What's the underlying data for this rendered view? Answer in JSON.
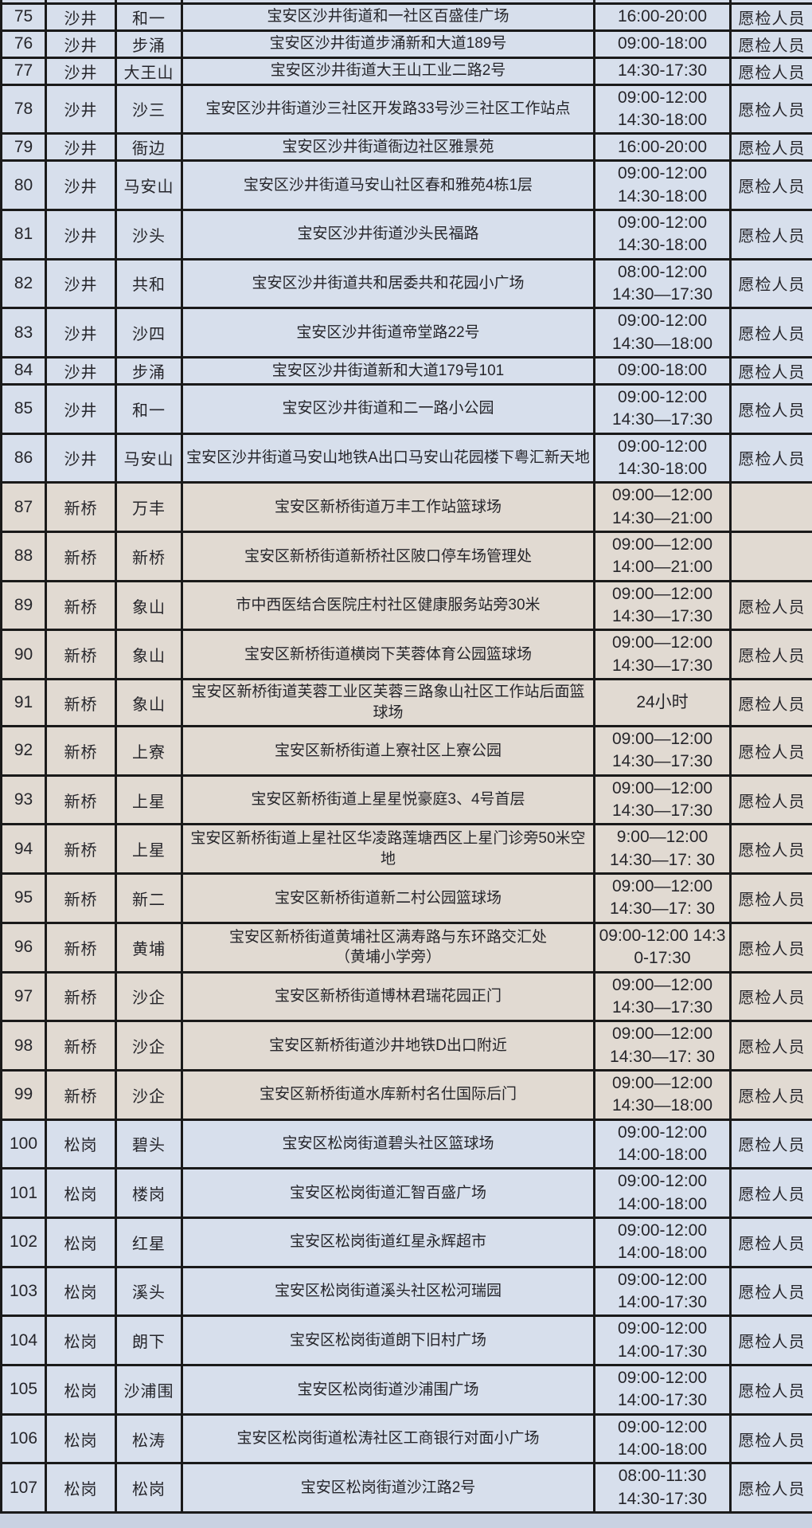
{
  "colors": {
    "section_blue": "#d7dfec",
    "section_tan": "#e1dad2",
    "border": "#1a1a1a",
    "text": "#26262b"
  },
  "table": {
    "rows": [
      {
        "no": "75",
        "street": "沙井",
        "community": "和一",
        "address": "宝安区沙井街道和一社区百盛佳广场",
        "time": "16:00-20:00",
        "note": "愿检人员",
        "section": "blue",
        "size": "s"
      },
      {
        "no": "76",
        "street": "沙井",
        "community": "步涌",
        "address": "宝安区沙井街道步涌新和大道189号",
        "time": "09:00-18:00",
        "note": "愿检人员",
        "section": "blue",
        "size": "s"
      },
      {
        "no": "77",
        "street": "沙井",
        "community": "大王山",
        "address": "宝安区沙井街道大王山工业二路2号",
        "time": "14:30-17:30",
        "note": "愿检人员",
        "section": "blue",
        "size": "s"
      },
      {
        "no": "78",
        "street": "沙井",
        "community": "沙三",
        "address": "宝安区沙井街道沙三社区开发路33号沙三社区工作站点",
        "time": "09:00-12:00\n14:30-18:00",
        "note": "愿检人员",
        "section": "blue",
        "size": "t"
      },
      {
        "no": "79",
        "street": "沙井",
        "community": "衙边",
        "address": "宝安区沙井街道衙边社区雅景苑",
        "time": "16:00-20:00",
        "note": "愿检人员",
        "section": "blue",
        "size": "s"
      },
      {
        "no": "80",
        "street": "沙井",
        "community": "马安山",
        "address": "宝安区沙井街道马安山社区春和雅苑4栋1层",
        "time": "09:00-12:00\n14:30-18:00",
        "note": "愿检人员",
        "section": "blue",
        "size": "t"
      },
      {
        "no": "81",
        "street": "沙井",
        "community": "沙头",
        "address": "宝安区沙井街道沙头民福路",
        "time": "09:00-12:00\n14:30-18:00",
        "note": "愿检人员",
        "section": "blue",
        "size": "t"
      },
      {
        "no": "82",
        "street": "沙井",
        "community": "共和",
        "address": "宝安区沙井街道共和居委共和花园小广场",
        "time": "08:00-12:00\n14:30—17:30",
        "note": "愿检人员",
        "section": "blue",
        "size": "t"
      },
      {
        "no": "83",
        "street": "沙井",
        "community": "沙四",
        "address": "宝安区沙井街道帝堂路22号",
        "time": "09:00-12:00\n14:30—18:00",
        "note": "愿检人员",
        "section": "blue",
        "size": "t"
      },
      {
        "no": "84",
        "street": "沙井",
        "community": "步涌",
        "address": "宝安区沙井街道新和大道179号101",
        "time": "09:00-18:00",
        "note": "愿检人员",
        "section": "blue",
        "size": "s"
      },
      {
        "no": "85",
        "street": "沙井",
        "community": "和一",
        "address": "宝安区沙井街道和二一路小公园",
        "time": "09:00-12:00\n14:30—17:30",
        "note": "愿检人员",
        "section": "blue",
        "size": "t"
      },
      {
        "no": "86",
        "street": "沙井",
        "community": "马安山",
        "address": "宝安区沙井街道马安山地铁A出口马安山花园楼下粤汇新天地",
        "time": "09:00-12:00\n14:30-18:00",
        "note": "愿检人员",
        "section": "blue",
        "size": "t"
      },
      {
        "no": "87",
        "street": "新桥",
        "community": "万丰",
        "address": "宝安区新桥街道万丰工作站篮球场",
        "time": "09:00—12:00\n14:30—21:00",
        "note": "",
        "section": "tan",
        "size": "t"
      },
      {
        "no": "88",
        "street": "新桥",
        "community": "新桥",
        "address": "宝安区新桥街道新桥社区陂口停车场管理处",
        "time": "09:00—12:00\n14:00—21:00",
        "note": "",
        "section": "tan",
        "size": "t"
      },
      {
        "no": "89",
        "street": "新桥",
        "community": "象山",
        "address": "市中西医结合医院庄村社区健康服务站旁30米",
        "time": "09:00—12:00\n14:30—17:30",
        "note": "愿检人员",
        "section": "tan",
        "size": "t"
      },
      {
        "no": "90",
        "street": "新桥",
        "community": "象山",
        "address": "宝安区新桥街道横岗下芙蓉体育公园篮球场",
        "time": "09:00—12:00\n14:30—17:30",
        "note": "愿检人员",
        "section": "tan",
        "size": "t"
      },
      {
        "no": "91",
        "street": "新桥",
        "community": "象山",
        "address": "宝安区新桥街道芙蓉工业区芙蓉三路象山社区工作站后面篮球场",
        "time": "24小时",
        "note": "愿检人员",
        "section": "tan",
        "size": "t"
      },
      {
        "no": "92",
        "street": "新桥",
        "community": "上寮",
        "address": "宝安区新桥街道上寮社区上寮公园",
        "time": "09:00—12:00\n14:30—17:30",
        "note": "愿检人员",
        "section": "tan",
        "size": "t"
      },
      {
        "no": "93",
        "street": "新桥",
        "community": "上星",
        "address": "宝安区新桥街道上星星悦豪庭3、4号首层",
        "time": "09:00—12:00\n14:30—17:30",
        "note": "愿检人员",
        "section": "tan",
        "size": "t"
      },
      {
        "no": "94",
        "street": "新桥",
        "community": "上星",
        "address": "宝安区新桥街道上星社区华凌路莲塘西区上星门诊旁50米空地",
        "time": "9:00—12:00\n14:30—17: 30",
        "note": "愿检人员",
        "section": "tan",
        "size": "t"
      },
      {
        "no": "95",
        "street": "新桥",
        "community": "新二",
        "address": "宝安区新桥街道新二村公园篮球场",
        "time": "09:00—12:00\n14:30—17: 30",
        "note": "愿检人员",
        "section": "tan",
        "size": "t"
      },
      {
        "no": "96",
        "street": "新桥",
        "community": "黄埔",
        "address": "宝安区新桥街道黄埔社区满寿路与东环路交汇处\n（黄埔小学旁）",
        "time": "09:00-12:00 14:30-17:30",
        "note": "愿检人员",
        "section": "tan",
        "size": "t"
      },
      {
        "no": "97",
        "street": "新桥",
        "community": "沙企",
        "address": "宝安区新桥街道博林君瑞花园正门",
        "time": "09:00—12:00\n14:30—17:30",
        "note": "愿检人员",
        "section": "tan",
        "size": "t"
      },
      {
        "no": "98",
        "street": "新桥",
        "community": "沙企",
        "address": "宝安区新桥街道沙井地铁D出口附近",
        "time": "09:00—12:00\n14:30—17: 30",
        "note": "愿检人员",
        "section": "tan",
        "size": "t"
      },
      {
        "no": "99",
        "street": "新桥",
        "community": "沙企",
        "address": "宝安区新桥街道水库新村名仕国际后门",
        "time": "09:00—12:00\n14:30—18:00",
        "note": "愿检人员",
        "section": "tan",
        "size": "t"
      },
      {
        "no": "100",
        "street": "松岗",
        "community": "碧头",
        "address": "宝安区松岗街道碧头社区篮球场",
        "time": "09:00-12:00\n14:00-18:00",
        "note": "愿检人员",
        "section": "blue",
        "size": "t"
      },
      {
        "no": "101",
        "street": "松岗",
        "community": "楼岗",
        "address": "宝安区松岗街道汇智百盛广场",
        "time": "09:00-12:00\n14:00-18:00",
        "note": "愿检人员",
        "section": "blue",
        "size": "t"
      },
      {
        "no": "102",
        "street": "松岗",
        "community": "红星",
        "address": "宝安区松岗街道红星永辉超市",
        "time": "09:00-12:00\n14:00-18:00",
        "note": "愿检人员",
        "section": "blue",
        "size": "t"
      },
      {
        "no": "103",
        "street": "松岗",
        "community": "溪头",
        "address": "宝安区松岗街道溪头社区松河瑞园",
        "time": "09:00-12:00\n14:00-17:30",
        "note": "愿检人员",
        "section": "blue",
        "size": "t"
      },
      {
        "no": "104",
        "street": "松岗",
        "community": "朗下",
        "address": "宝安区松岗街道朗下旧村广场",
        "time": "09:00-12:00\n14:00-17:30",
        "note": "愿检人员",
        "section": "blue",
        "size": "t"
      },
      {
        "no": "105",
        "street": "松岗",
        "community": "沙浦围",
        "address": "宝安区松岗街道沙浦围广场",
        "time": "09:00-12:00\n14:00-17:30",
        "note": "愿检人员",
        "section": "blue",
        "size": "t"
      },
      {
        "no": "106",
        "street": "松岗",
        "community": "松涛",
        "address": "宝安区松岗街道松涛社区工商银行对面小广场",
        "time": "09:00-12:00\n14:00-18:00",
        "note": "愿检人员",
        "section": "blue",
        "size": "t"
      },
      {
        "no": "107",
        "street": "松岗",
        "community": "松岗",
        "address": "宝安区松岗街道沙江路2号",
        "time": "08:00-11:30\n14:30-17:30",
        "note": "愿检人员",
        "section": "blue",
        "size": "t"
      }
    ]
  }
}
